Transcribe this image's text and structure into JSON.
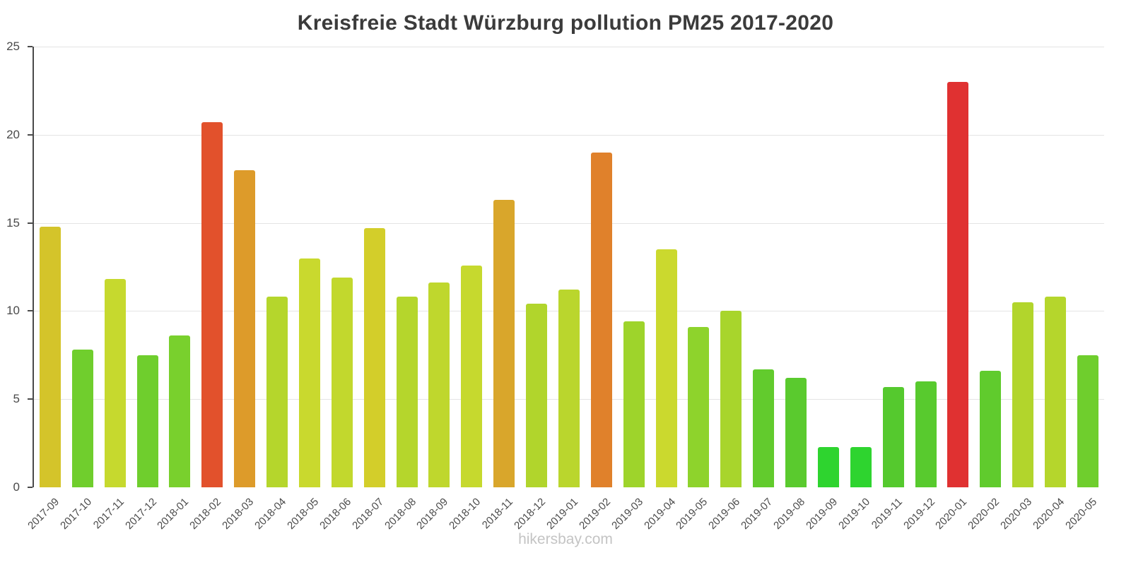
{
  "page": {
    "watermark": "hikersbay.com"
  },
  "chart_data": {
    "type": "bar",
    "title": "Kreisfreie Stadt Würzburg pollution PM25 2017-2020",
    "categories": [
      "2017-09",
      "2017-10",
      "2017-11",
      "2017-12",
      "2018-01",
      "2018-02",
      "2018-03",
      "2018-04",
      "2018-05",
      "2018-06",
      "2018-07",
      "2018-08",
      "2018-09",
      "2018-10",
      "2018-11",
      "2018-12",
      "2019-01",
      "2019-02",
      "2019-03",
      "2019-04",
      "2019-05",
      "2019-06",
      "2019-07",
      "2019-08",
      "2019-09",
      "2019-10",
      "2019-11",
      "2019-12",
      "2020-01",
      "2020-02",
      "2020-03",
      "2020-04",
      "2020-05"
    ],
    "values": [
      14.8,
      7.8,
      11.8,
      7.5,
      8.6,
      20.7,
      18.0,
      10.8,
      13.0,
      11.9,
      14.7,
      10.8,
      11.6,
      12.6,
      16.3,
      10.4,
      11.2,
      19.0,
      9.4,
      13.5,
      9.1,
      10.0,
      6.7,
      6.2,
      2.3,
      2.3,
      5.7,
      6.0,
      23.0,
      6.6,
      10.5,
      10.8,
      7.5
    ],
    "colors": [
      "#d4c42a",
      "#70ce2d",
      "#c6d92e",
      "#6fce2d",
      "#79d02d",
      "#e2512c",
      "#dd9b2a",
      "#b5d62c",
      "#c9d92e",
      "#c2d82d",
      "#d3ce2a",
      "#b5d62c",
      "#bfd72d",
      "#c6d92e",
      "#d9a62b",
      "#b1d52c",
      "#bad62d",
      "#e0812b",
      "#9ed42b",
      "#cbd92e",
      "#8ed32c",
      "#a8d52c",
      "#62cb2d",
      "#5aca2e",
      "#2ed42f",
      "#2ed42f",
      "#55c92e",
      "#58ca2e",
      "#e03131",
      "#60cb2d",
      "#b2d52c",
      "#b5d62c",
      "#6fce2d"
    ],
    "xlabel": "",
    "ylabel": "",
    "ylim": [
      0,
      25
    ],
    "yticks": [
      0,
      5,
      10,
      15,
      20,
      25
    ],
    "grid": true,
    "legend": false
  }
}
